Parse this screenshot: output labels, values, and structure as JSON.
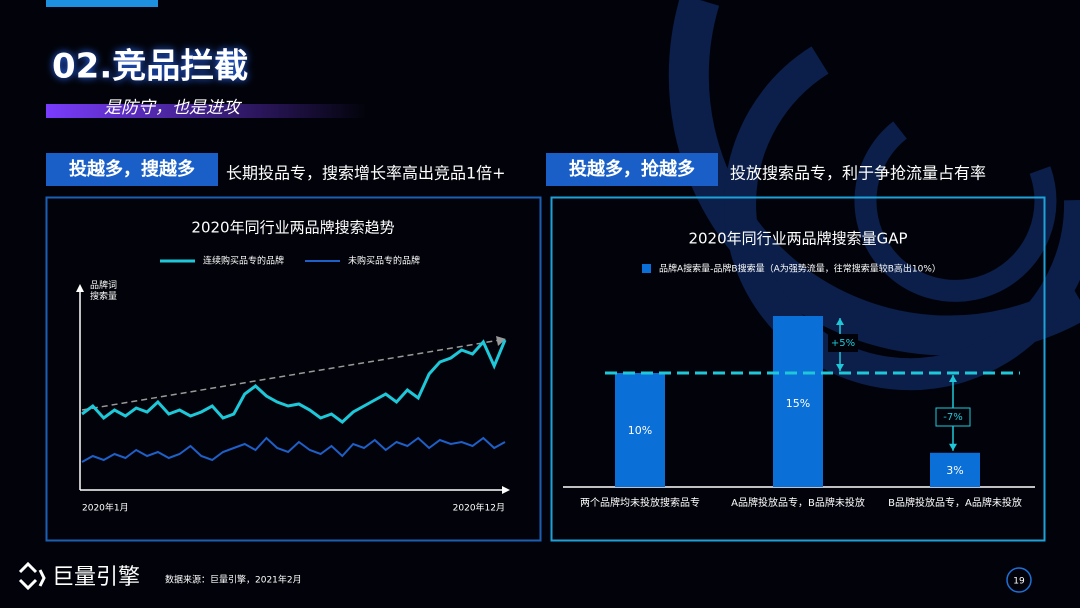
{
  "header": {
    "title": "02.竞品拦截",
    "subtitle": "是防守，也是进攻"
  },
  "highlights": [
    {
      "tag": "投越多，搜越多",
      "text": "长期投品专，搜索增长率高出竞品1倍+"
    },
    {
      "tag": "投越多，抢越多",
      "text": "投放搜索品专，利于争抢流量占有率"
    }
  ],
  "chart_data": [
    {
      "type": "line",
      "title": "2020年同行业两品牌搜索趋势",
      "y_label": "品牌词\n搜索量",
      "categories": [
        "2020年1月",
        null,
        null,
        null,
        null,
        null,
        null,
        null,
        null,
        null,
        null,
        null,
        null,
        null,
        null,
        null,
        null,
        null,
        null,
        null,
        null,
        null,
        null,
        null,
        null,
        null,
        null,
        null,
        null,
        null,
        null,
        null,
        null,
        null,
        null,
        null,
        null,
        null,
        null,
        "2020年12月"
      ],
      "ylim": [
        0,
        100
      ],
      "series": [
        {
          "name": "连续购买品专的品牌",
          "color": "#1ec8d8",
          "values": [
            38,
            42,
            36,
            40,
            37,
            41,
            39,
            44,
            38,
            40,
            37,
            39,
            42,
            36,
            38,
            48,
            52,
            47,
            44,
            42,
            43,
            40,
            36,
            38,
            34,
            39,
            42,
            45,
            48,
            44,
            50,
            46,
            58,
            64,
            66,
            70,
            68,
            74,
            62,
            75
          ]
        },
        {
          "name": "未购买品专的品牌",
          "color": "#1f5fc8",
          "values": [
            14,
            17,
            15,
            18,
            16,
            20,
            17,
            19,
            16,
            18,
            22,
            17,
            15,
            19,
            21,
            23,
            20,
            26,
            21,
            19,
            24,
            20,
            18,
            22,
            17,
            23,
            21,
            25,
            20,
            24,
            22,
            26,
            21,
            25,
            23,
            24,
            22,
            26,
            21,
            24
          ]
        }
      ]
    },
    {
      "type": "bar",
      "title": "2020年同行业两品牌搜索量GAP",
      "categories": [
        "两个品牌均未投放搜索品专",
        "A品牌投放品专，B品牌未投放",
        "B品牌投放品专，A品牌未投放"
      ],
      "ylim": [
        0,
        15
      ],
      "series": [
        {
          "name": "品牌A搜索量-品牌B搜索量（A为强势流量，往常搜索量较B高出10%）",
          "color": "#0a6fd6",
          "values": [
            10,
            15,
            3
          ],
          "value_labels": [
            "10%",
            "15%",
            "3%"
          ]
        }
      ],
      "annotations": [
        "+5%",
        "-7%"
      ]
    }
  ],
  "footer": {
    "brand": "巨量引擎",
    "source": "数据来源：巨量引擎，2021年2月",
    "page": "19"
  }
}
